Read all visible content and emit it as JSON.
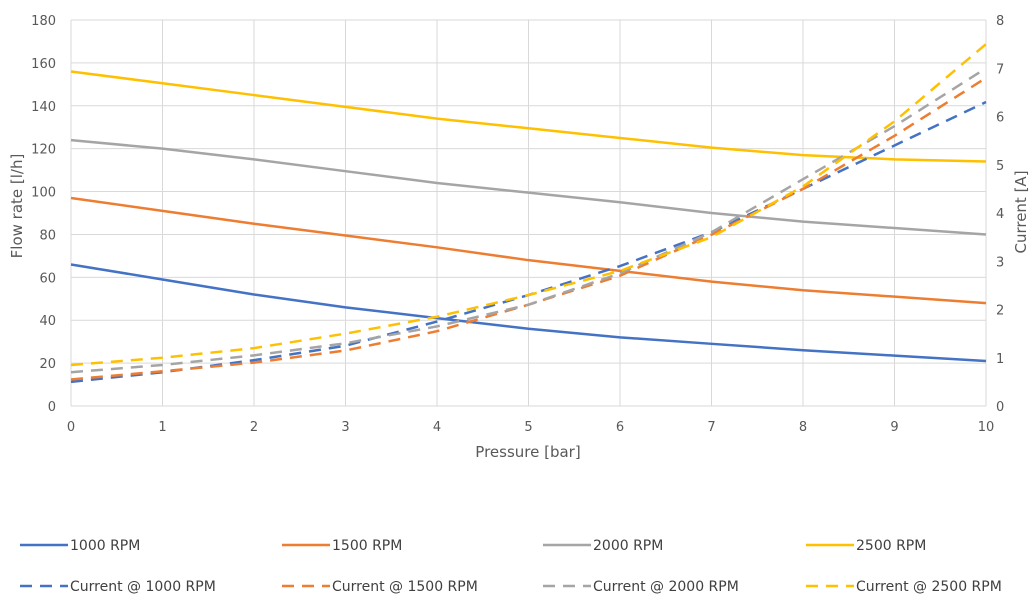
{
  "chart_data": {
    "type": "line",
    "title": "",
    "xlabel": "Pressure [bar]",
    "ylabel": "Flow rate [l/h]",
    "y2label": "Current [A]",
    "xlim": [
      0,
      10
    ],
    "ylim": [
      0,
      180
    ],
    "y2lim": [
      0,
      8
    ],
    "x_ticks": [
      "0",
      "1",
      "2",
      "3",
      "4",
      "5",
      "6",
      "7",
      "8",
      "9",
      "10"
    ],
    "y_ticks": [
      "0",
      "20",
      "40",
      "60",
      "80",
      "100",
      "120",
      "140",
      "160",
      "180"
    ],
    "y2_ticks": [
      "0",
      "1",
      "2",
      "3",
      "4",
      "5",
      "6",
      "7",
      "8"
    ],
    "grid": true,
    "legend_position": "bottom",
    "x": [
      0,
      1,
      2,
      3,
      4,
      5,
      6,
      7,
      8,
      9,
      10
    ],
    "series": [
      {
        "name": "1000 RPM",
        "axis": "left",
        "style": "solid",
        "color": "#4472C4",
        "values": [
          66,
          59,
          52,
          46,
          41,
          36,
          32,
          29,
          26,
          23.5,
          21
        ]
      },
      {
        "name": "1500 RPM",
        "axis": "left",
        "style": "solid",
        "color": "#ED7D31",
        "values": [
          97,
          91,
          85,
          79.5,
          74,
          68,
          63,
          58,
          54,
          51,
          48
        ]
      },
      {
        "name": "2000 RPM",
        "axis": "left",
        "style": "solid",
        "color": "#A5A5A5",
        "values": [
          124,
          120,
          115,
          109.5,
          104,
          99.5,
          95,
          90,
          86,
          83,
          80
        ]
      },
      {
        "name": "2500 RPM",
        "axis": "left",
        "style": "solid",
        "color": "#FFC000",
        "values": [
          156,
          150.5,
          145,
          139.5,
          134,
          129.5,
          125,
          120.5,
          117,
          115,
          114
        ]
      },
      {
        "name": "Current @ 1000 RPM",
        "axis": "right",
        "style": "dashed",
        "color": "#4472C4",
        "values": [
          0.5,
          0.7,
          0.95,
          1.25,
          1.75,
          2.3,
          2.9,
          3.6,
          4.5,
          5.4,
          6.3
        ]
      },
      {
        "name": "Current @ 1500 RPM",
        "axis": "right",
        "style": "dashed",
        "color": "#ED7D31",
        "values": [
          0.55,
          0.72,
          0.9,
          1.15,
          1.55,
          2.1,
          2.7,
          3.55,
          4.5,
          5.6,
          6.8
        ]
      },
      {
        "name": "Current @ 2000 RPM",
        "axis": "right",
        "style": "dashed",
        "color": "#A5A5A5",
        "values": [
          0.7,
          0.85,
          1.05,
          1.3,
          1.65,
          2.1,
          2.75,
          3.6,
          4.7,
          5.8,
          7.0
        ]
      },
      {
        "name": "Current @ 2500 RPM",
        "axis": "right",
        "style": "dashed",
        "color": "#FFC000",
        "values": [
          0.85,
          1.0,
          1.2,
          1.5,
          1.85,
          2.3,
          2.8,
          3.5,
          4.55,
          5.9,
          7.5
        ]
      }
    ]
  }
}
